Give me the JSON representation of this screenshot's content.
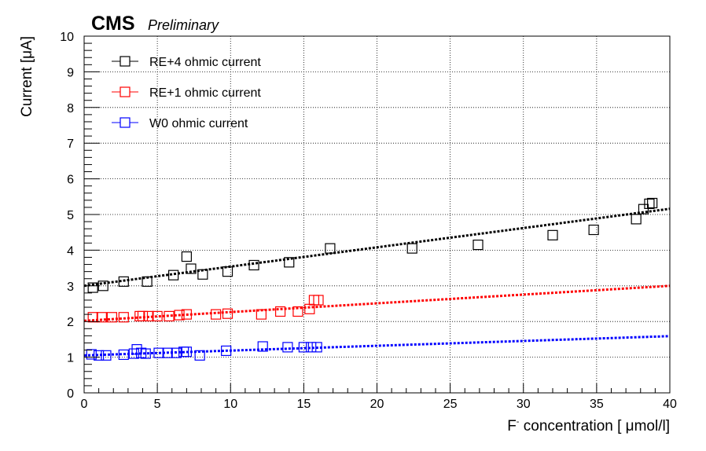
{
  "header": {
    "experiment": "CMS",
    "status": "Preliminary"
  },
  "chart_data": {
    "type": "scatter",
    "title": "",
    "xlabel": "F",
    "xlabel_superscript": "-",
    "xlabel_rest": " concentration [ μmol/l]",
    "ylabel": "Current [μA]",
    "xlim": [
      0,
      40
    ],
    "ylim": [
      0,
      10
    ],
    "xticks": [
      0,
      5,
      10,
      15,
      20,
      25,
      30,
      35,
      40
    ],
    "xtick_labels": [
      "0",
      "5",
      "10",
      "15",
      "20",
      "25",
      "30",
      "35",
      "40"
    ],
    "yticks": [
      0,
      1,
      2,
      3,
      4,
      5,
      6,
      7,
      8,
      9,
      10
    ],
    "ytick_labels": [
      "0",
      "1",
      "2",
      "3",
      "4",
      "5",
      "6",
      "7",
      "8",
      "9",
      "10"
    ],
    "grid": true,
    "legend_position": "top-left",
    "series": [
      {
        "name": "RE+4 ohmic current",
        "color": "#000000",
        "marker": "open-square",
        "fit": {
          "type": "linear",
          "intercept": 3.0,
          "slope": 0.054,
          "style": "dotted"
        },
        "points": [
          [
            0.6,
            2.95
          ],
          [
            1.3,
            3.0
          ],
          [
            2.7,
            3.12
          ],
          [
            4.3,
            3.12
          ],
          [
            6.1,
            3.3
          ],
          [
            7.0,
            3.82
          ],
          [
            7.3,
            3.48
          ],
          [
            8.1,
            3.32
          ],
          [
            9.8,
            3.4
          ],
          [
            11.6,
            3.58
          ],
          [
            14.0,
            3.66
          ],
          [
            16.8,
            4.05
          ],
          [
            22.4,
            4.05
          ],
          [
            26.9,
            4.15
          ],
          [
            32.0,
            4.42
          ],
          [
            34.8,
            4.57
          ],
          [
            37.7,
            4.87
          ],
          [
            38.2,
            5.15
          ],
          [
            38.6,
            5.3
          ],
          [
            38.8,
            5.32
          ]
        ]
      },
      {
        "name": "RE+1 ohmic current",
        "color": "#ff0000",
        "marker": "open-square",
        "fit": {
          "type": "linear",
          "intercept": 2.02,
          "slope": 0.0245,
          "style": "dotted"
        },
        "points": [
          [
            0.6,
            2.12
          ],
          [
            1.2,
            2.12
          ],
          [
            1.9,
            2.12
          ],
          [
            2.7,
            2.12
          ],
          [
            3.8,
            2.15
          ],
          [
            4.0,
            2.15
          ],
          [
            4.4,
            2.15
          ],
          [
            5.0,
            2.15
          ],
          [
            5.8,
            2.15
          ],
          [
            6.5,
            2.18
          ],
          [
            7.0,
            2.2
          ],
          [
            9.0,
            2.2
          ],
          [
            9.8,
            2.22
          ],
          [
            12.1,
            2.2
          ],
          [
            13.4,
            2.28
          ],
          [
            14.6,
            2.28
          ],
          [
            15.4,
            2.35
          ],
          [
            15.7,
            2.6
          ],
          [
            16.0,
            2.6
          ]
        ]
      },
      {
        "name": "W0 ohmic current",
        "color": "#0000ff",
        "marker": "open-square",
        "fit": {
          "type": "linear",
          "intercept": 1.05,
          "slope": 0.0135,
          "style": "dotted"
        },
        "points": [
          [
            0.5,
            1.08
          ],
          [
            1.0,
            1.05
          ],
          [
            1.5,
            1.05
          ],
          [
            2.7,
            1.07
          ],
          [
            3.4,
            1.1
          ],
          [
            3.6,
            1.22
          ],
          [
            3.9,
            1.12
          ],
          [
            4.2,
            1.1
          ],
          [
            5.1,
            1.12
          ],
          [
            5.7,
            1.12
          ],
          [
            6.3,
            1.12
          ],
          [
            6.8,
            1.15
          ],
          [
            7.0,
            1.15
          ],
          [
            7.9,
            1.05
          ],
          [
            9.7,
            1.18
          ],
          [
            12.2,
            1.3
          ],
          [
            13.9,
            1.28
          ],
          [
            15.0,
            1.28
          ],
          [
            15.5,
            1.28
          ],
          [
            15.9,
            1.28
          ]
        ]
      }
    ]
  }
}
